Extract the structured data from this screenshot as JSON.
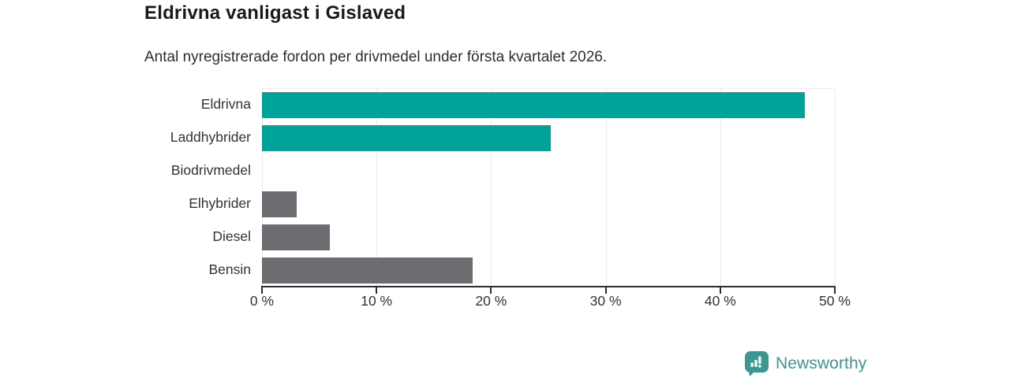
{
  "header": {
    "title": "Eldrivna vanligast i Gislaved",
    "subtitle": "Antal nyregistrerade fordon per drivmedel under första kvartalet 2026."
  },
  "chart_data": {
    "type": "bar",
    "orientation": "horizontal",
    "title": "Eldrivna vanligast i Gislaved",
    "subtitle": "Antal nyregistrerade fordon per drivmedel under första kvartalet 2026.",
    "categories": [
      "Eldrivna",
      "Laddhybrider",
      "Biodrivmedel",
      "Elhybrider",
      "Diesel",
      "Bensin"
    ],
    "values": [
      47.4,
      25.2,
      0,
      3.0,
      5.9,
      18.4
    ],
    "unit": "%",
    "bar_colors": [
      "#00A39A",
      "#00A39A",
      "#6C6C71",
      "#6C6C71",
      "#6C6C71",
      "#6C6C71"
    ],
    "highlight_color": "#00A39A",
    "default_color": "#6C6C71",
    "xlim": [
      0,
      50
    ],
    "x_ticks": [
      0,
      10,
      20,
      30,
      40,
      50
    ],
    "x_tick_labels": [
      "0 %",
      "10 %",
      "20 %",
      "30 %",
      "40 %",
      "50 %"
    ],
    "grid": "vertical-light",
    "legend": "none"
  },
  "footer": {
    "brand": "Newsworthy",
    "brand_color": "#3D968F"
  }
}
